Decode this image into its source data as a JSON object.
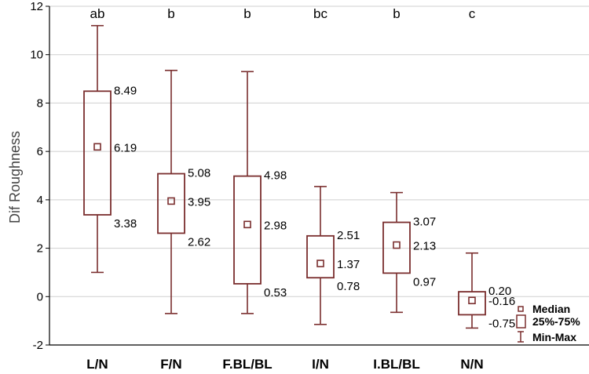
{
  "chart_data": {
    "type": "box",
    "ylabel": "Dif Roughness",
    "xlabel": "",
    "ylim": [
      -2,
      12
    ],
    "yticks": [
      -2,
      0,
      2,
      4,
      6,
      8,
      10,
      12
    ],
    "grid": true,
    "legend_position": "bottom-right",
    "legend": [
      "Median",
      "25%-75%",
      "Min-Max"
    ],
    "colors": {
      "box": "#7a2e2e",
      "grid": "#cfcfcf",
      "axis": "#000000"
    },
    "categories": [
      "L/N",
      "F/N",
      "F.BL/BL",
      "I/N",
      "I.BL/BL",
      "N/N"
    ],
    "letters": [
      "ab",
      "b",
      "b",
      "bc",
      "b",
      "c"
    ],
    "boxes": [
      {
        "min": 1.0,
        "q1": 3.38,
        "median": 6.19,
        "q3": 8.49,
        "max": 11.2,
        "labels": [
          "8.49",
          "6.19",
          "3.38"
        ]
      },
      {
        "min": -0.7,
        "q1": 2.62,
        "median": 3.95,
        "q3": 5.08,
        "max": 9.35,
        "labels": [
          "5.08",
          "3.95",
          "2.62"
        ]
      },
      {
        "min": -0.7,
        "q1": 0.53,
        "median": 2.98,
        "q3": 4.98,
        "max": 9.3,
        "labels": [
          "4.98",
          "2.98",
          "0.53"
        ]
      },
      {
        "min": -1.15,
        "q1": 0.78,
        "median": 1.37,
        "q3": 2.51,
        "max": 4.55,
        "labels": [
          "2.51",
          "1.37",
          "0.78"
        ]
      },
      {
        "min": -0.65,
        "q1": 0.97,
        "median": 2.13,
        "q3": 3.07,
        "max": 4.3,
        "labels": [
          "3.07",
          "2.13",
          "0.97"
        ]
      },
      {
        "min": -1.3,
        "q1": -0.75,
        "median": -0.16,
        "q3": 0.2,
        "max": 1.8,
        "labels": [
          "0.20",
          "-0.16",
          "-0.75"
        ]
      }
    ]
  }
}
